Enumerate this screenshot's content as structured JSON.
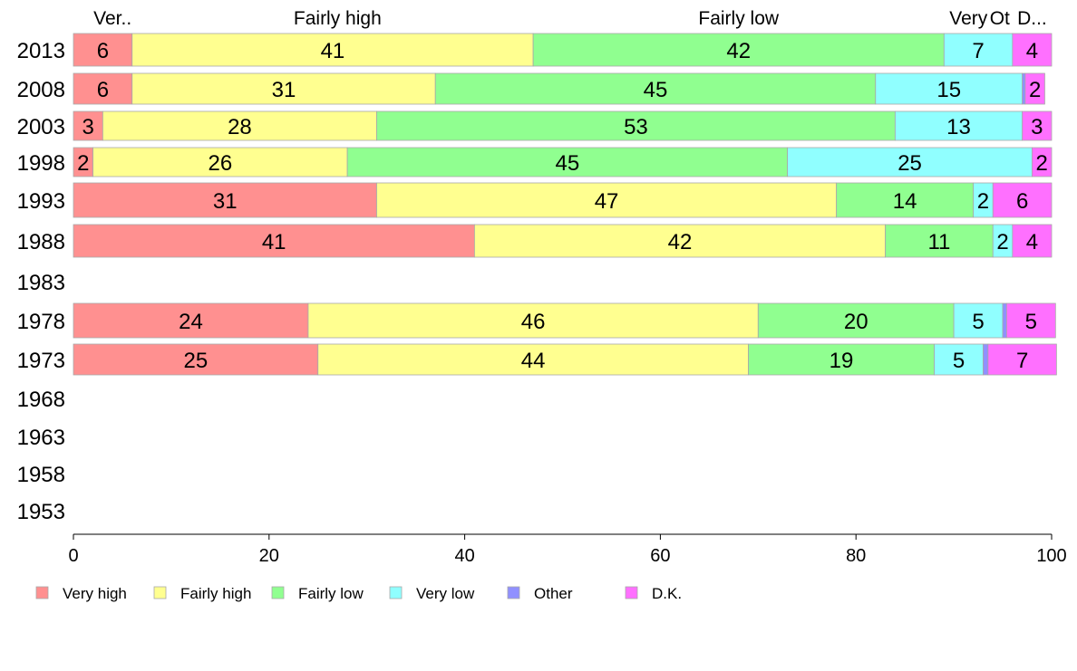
{
  "chart_data": {
    "type": "bar",
    "orientation": "horizontal",
    "stacked": true,
    "title": "",
    "xlabel": "",
    "ylabel": "",
    "xlim": [
      0,
      100
    ],
    "x_ticks": [
      "0",
      "20",
      "40",
      "60",
      "80",
      "100"
    ],
    "categories": [
      "2013",
      "2008",
      "2003",
      "1998",
      "1993",
      "1988",
      "1983",
      "1978",
      "1973",
      "1968",
      "1963",
      "1958",
      "1953"
    ],
    "top_labels": [
      "Ver..",
      "Fairly high",
      "Fairly low",
      "Very",
      "Ot",
      "D..."
    ],
    "legend_position": "bottom",
    "series": [
      {
        "name": "Very high",
        "color": "#ff9090",
        "values": [
          6,
          6,
          3,
          2,
          31,
          41,
          null,
          24,
          25,
          null,
          null,
          null,
          null
        ]
      },
      {
        "name": "Fairly high",
        "color": "#ffff90",
        "values": [
          41,
          31,
          28,
          26,
          47,
          42,
          null,
          46,
          44,
          null,
          null,
          null,
          null
        ]
      },
      {
        "name": "Fairly low",
        "color": "#90ff90",
        "values": [
          42,
          45,
          53,
          45,
          14,
          11,
          null,
          20,
          19,
          null,
          null,
          null,
          null
        ]
      },
      {
        "name": "Very low",
        "color": "#90ffff",
        "values": [
          7,
          15,
          13,
          25,
          2,
          2,
          null,
          5,
          5,
          null,
          null,
          null,
          null
        ]
      },
      {
        "name": "Other",
        "color": "#9090ff",
        "values": [
          0,
          0.3,
          0,
          0,
          0,
          0,
          null,
          0.4,
          0.5,
          null,
          null,
          null,
          null
        ]
      },
      {
        "name": "D.K.",
        "color": "#ff70ff",
        "values": [
          4,
          2,
          3,
          2,
          6,
          4,
          null,
          5,
          7,
          null,
          null,
          null,
          null
        ]
      }
    ]
  }
}
